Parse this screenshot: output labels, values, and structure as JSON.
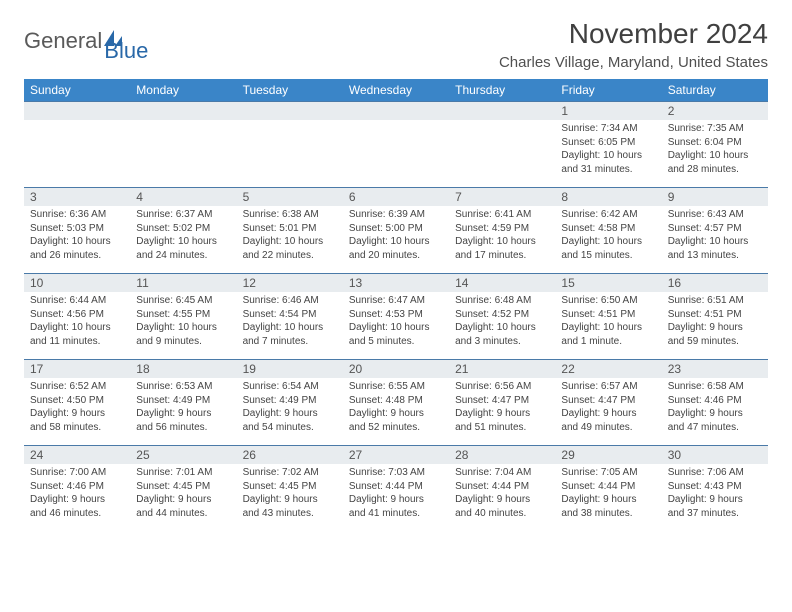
{
  "brand": {
    "part1": "General",
    "part2": "Blue"
  },
  "title": "November 2024",
  "location": "Charles Village, Maryland, United States",
  "colors": {
    "header_bg": "#3a85c8",
    "header_text": "#ffffff",
    "rule": "#4a7aa8",
    "daynum_bg": "#e8ecef",
    "brand_gray": "#5a5a5a",
    "brand_blue": "#2968a8"
  },
  "weekdays": [
    "Sunday",
    "Monday",
    "Tuesday",
    "Wednesday",
    "Thursday",
    "Friday",
    "Saturday"
  ],
  "weeks": [
    [
      null,
      null,
      null,
      null,
      null,
      {
        "n": "1",
        "sr": "7:34 AM",
        "ss": "6:05 PM",
        "dl": "10 hours and 31 minutes."
      },
      {
        "n": "2",
        "sr": "7:35 AM",
        "ss": "6:04 PM",
        "dl": "10 hours and 28 minutes."
      }
    ],
    [
      {
        "n": "3",
        "sr": "6:36 AM",
        "ss": "5:03 PM",
        "dl": "10 hours and 26 minutes."
      },
      {
        "n": "4",
        "sr": "6:37 AM",
        "ss": "5:02 PM",
        "dl": "10 hours and 24 minutes."
      },
      {
        "n": "5",
        "sr": "6:38 AM",
        "ss": "5:01 PM",
        "dl": "10 hours and 22 minutes."
      },
      {
        "n": "6",
        "sr": "6:39 AM",
        "ss": "5:00 PM",
        "dl": "10 hours and 20 minutes."
      },
      {
        "n": "7",
        "sr": "6:41 AM",
        "ss": "4:59 PM",
        "dl": "10 hours and 17 minutes."
      },
      {
        "n": "8",
        "sr": "6:42 AM",
        "ss": "4:58 PM",
        "dl": "10 hours and 15 minutes."
      },
      {
        "n": "9",
        "sr": "6:43 AM",
        "ss": "4:57 PM",
        "dl": "10 hours and 13 minutes."
      }
    ],
    [
      {
        "n": "10",
        "sr": "6:44 AM",
        "ss": "4:56 PM",
        "dl": "10 hours and 11 minutes."
      },
      {
        "n": "11",
        "sr": "6:45 AM",
        "ss": "4:55 PM",
        "dl": "10 hours and 9 minutes."
      },
      {
        "n": "12",
        "sr": "6:46 AM",
        "ss": "4:54 PM",
        "dl": "10 hours and 7 minutes."
      },
      {
        "n": "13",
        "sr": "6:47 AM",
        "ss": "4:53 PM",
        "dl": "10 hours and 5 minutes."
      },
      {
        "n": "14",
        "sr": "6:48 AM",
        "ss": "4:52 PM",
        "dl": "10 hours and 3 minutes."
      },
      {
        "n": "15",
        "sr": "6:50 AM",
        "ss": "4:51 PM",
        "dl": "10 hours and 1 minute."
      },
      {
        "n": "16",
        "sr": "6:51 AM",
        "ss": "4:51 PM",
        "dl": "9 hours and 59 minutes."
      }
    ],
    [
      {
        "n": "17",
        "sr": "6:52 AM",
        "ss": "4:50 PM",
        "dl": "9 hours and 58 minutes."
      },
      {
        "n": "18",
        "sr": "6:53 AM",
        "ss": "4:49 PM",
        "dl": "9 hours and 56 minutes."
      },
      {
        "n": "19",
        "sr": "6:54 AM",
        "ss": "4:49 PM",
        "dl": "9 hours and 54 minutes."
      },
      {
        "n": "20",
        "sr": "6:55 AM",
        "ss": "4:48 PM",
        "dl": "9 hours and 52 minutes."
      },
      {
        "n": "21",
        "sr": "6:56 AM",
        "ss": "4:47 PM",
        "dl": "9 hours and 51 minutes."
      },
      {
        "n": "22",
        "sr": "6:57 AM",
        "ss": "4:47 PM",
        "dl": "9 hours and 49 minutes."
      },
      {
        "n": "23",
        "sr": "6:58 AM",
        "ss": "4:46 PM",
        "dl": "9 hours and 47 minutes."
      }
    ],
    [
      {
        "n": "24",
        "sr": "7:00 AM",
        "ss": "4:46 PM",
        "dl": "9 hours and 46 minutes."
      },
      {
        "n": "25",
        "sr": "7:01 AM",
        "ss": "4:45 PM",
        "dl": "9 hours and 44 minutes."
      },
      {
        "n": "26",
        "sr": "7:02 AM",
        "ss": "4:45 PM",
        "dl": "9 hours and 43 minutes."
      },
      {
        "n": "27",
        "sr": "7:03 AM",
        "ss": "4:44 PM",
        "dl": "9 hours and 41 minutes."
      },
      {
        "n": "28",
        "sr": "7:04 AM",
        "ss": "4:44 PM",
        "dl": "9 hours and 40 minutes."
      },
      {
        "n": "29",
        "sr": "7:05 AM",
        "ss": "4:44 PM",
        "dl": "9 hours and 38 minutes."
      },
      {
        "n": "30",
        "sr": "7:06 AM",
        "ss": "4:43 PM",
        "dl": "9 hours and 37 minutes."
      }
    ]
  ],
  "labels": {
    "sunrise": "Sunrise:",
    "sunset": "Sunset:",
    "daylight": "Daylight:"
  }
}
